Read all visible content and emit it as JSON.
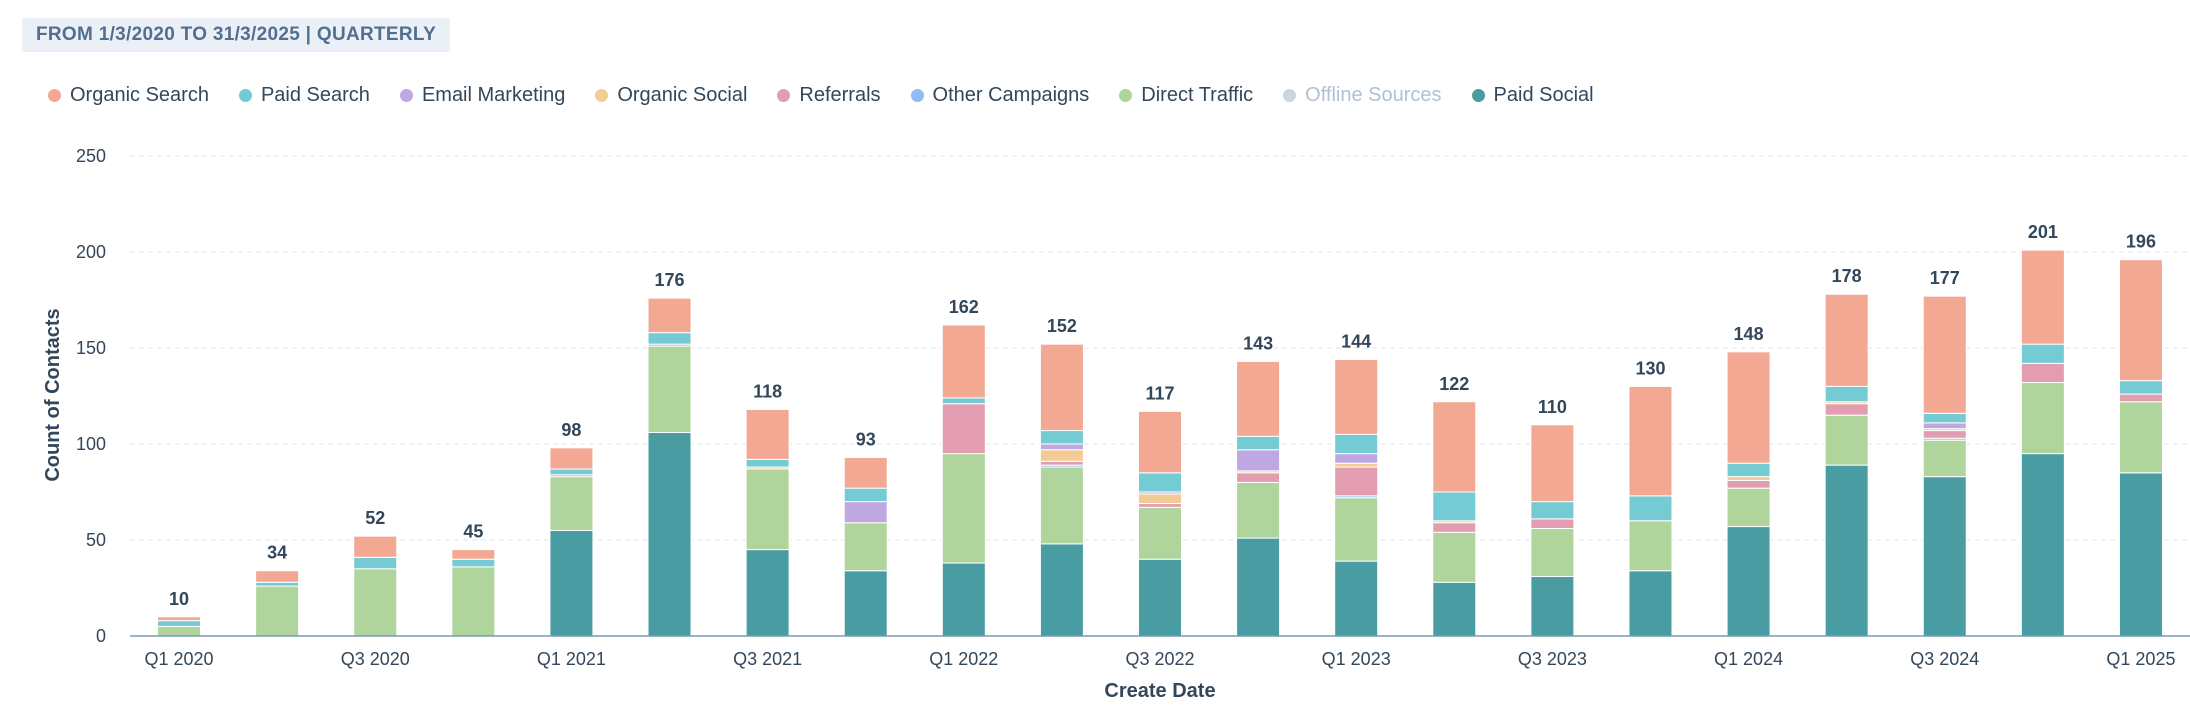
{
  "header": {
    "date_range": "FROM 1/3/2020 TO 31/3/2025 | QUARTERLY"
  },
  "chart_data": {
    "type": "bar",
    "stacked": true,
    "xlabel": "Create Date",
    "ylabel": "Count of Contacts",
    "ylim": [
      0,
      250
    ],
    "yticks": [
      0,
      50,
      100,
      150,
      200,
      250
    ],
    "grid": true,
    "categories": [
      "Q1 2020",
      "Q2 2020",
      "Q3 2020",
      "Q4 2020",
      "Q1 2021",
      "Q2 2021",
      "Q3 2021",
      "Q4 2021",
      "Q1 2022",
      "Q2 2022",
      "Q3 2022",
      "Q4 2022",
      "Q1 2023",
      "Q2 2023",
      "Q3 2023",
      "Q4 2023",
      "Q1 2024",
      "Q2 2024",
      "Q3 2024",
      "Q4 2024",
      "Q1 2025"
    ],
    "tick_labels": [
      "Q1 2020",
      "",
      "Q3 2020",
      "",
      "Q1 2021",
      "",
      "Q3 2021",
      "",
      "Q1 2022",
      "",
      "Q3 2022",
      "",
      "Q1 2023",
      "",
      "Q3 2023",
      "",
      "Q1 2024",
      "",
      "Q3 2024",
      "",
      "Q1 2025"
    ],
    "totals": [
      10,
      34,
      52,
      45,
      98,
      176,
      118,
      93,
      162,
      152,
      117,
      143,
      144,
      122,
      110,
      130,
      148,
      178,
      177,
      201,
      196
    ],
    "series": [
      {
        "name": "Paid Social",
        "color": "#4a9ca3",
        "active": true,
        "values": [
          0,
          0,
          0,
          0,
          55,
          106,
          45,
          34,
          38,
          48,
          40,
          51,
          39,
          28,
          31,
          34,
          57,
          89,
          83,
          95,
          85
        ]
      },
      {
        "name": "Direct Traffic",
        "color": "#afd49c",
        "active": true,
        "values": [
          5,
          26,
          35,
          36,
          28,
          45,
          42,
          25,
          57,
          40,
          27,
          29,
          33,
          26,
          25,
          26,
          20,
          26,
          19,
          37,
          37
        ]
      },
      {
        "name": "Offline Sources",
        "color": "#cbd6e2",
        "active": false,
        "values": [
          0,
          0,
          0,
          0,
          0,
          0,
          0,
          0,
          0,
          0,
          0,
          0,
          0,
          0,
          0,
          0,
          0,
          0,
          0,
          0,
          0
        ]
      },
      {
        "name": "Other Campaigns",
        "color": "#8fbcf2",
        "active": true,
        "values": [
          0,
          0,
          0,
          0,
          0,
          0,
          0,
          0,
          0,
          1,
          0,
          0,
          1,
          0,
          0,
          0,
          0,
          0,
          1,
          0,
          0
        ]
      },
      {
        "name": "Referrals",
        "color": "#e29eb0",
        "active": true,
        "values": [
          0,
          0,
          0,
          0,
          1,
          0,
          0,
          0,
          26,
          2,
          2,
          5,
          15,
          5,
          5,
          0,
          4,
          6,
          4,
          10,
          4
        ]
      },
      {
        "name": "Organic Social",
        "color": "#f2cb97",
        "active": true,
        "values": [
          0,
          0,
          0,
          0,
          0,
          0,
          1,
          0,
          0,
          6,
          5,
          1,
          2,
          1,
          0,
          0,
          2,
          1,
          1,
          0,
          0
        ]
      },
      {
        "name": "Email Marketing",
        "color": "#bfa8e1",
        "active": true,
        "values": [
          0,
          0,
          0,
          0,
          0,
          1,
          0,
          11,
          0,
          3,
          1,
          11,
          5,
          0,
          0,
          0,
          0,
          0,
          3,
          0,
          0
        ]
      },
      {
        "name": "Paid Search",
        "color": "#75cbd3",
        "active": true,
        "values": [
          3,
          2,
          6,
          4,
          3,
          6,
          4,
          7,
          3,
          7,
          10,
          7,
          10,
          15,
          9,
          13,
          7,
          8,
          5,
          10,
          7
        ]
      },
      {
        "name": "Organic Search",
        "color": "#f2a892",
        "active": true,
        "values": [
          2,
          6,
          11,
          5,
          11,
          18,
          26,
          16,
          38,
          45,
          32,
          39,
          39,
          47,
          40,
          57,
          58,
          48,
          61,
          49,
          63
        ]
      }
    ],
    "legend_order": [
      "Organic Search",
      "Paid Search",
      "Email Marketing",
      "Organic Social",
      "Referrals",
      "Other Campaigns",
      "Direct Traffic",
      "Offline Sources",
      "Paid Social"
    ],
    "legend_position": "top-left"
  }
}
